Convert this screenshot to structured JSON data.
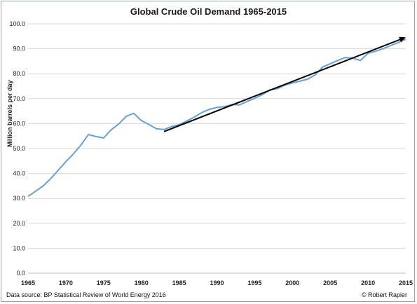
{
  "chart_data": {
    "type": "line",
    "title": "Global Crude Oil Demand 1965-2015",
    "ylabel": "Million barrels per day",
    "xlabel": "",
    "xlim": [
      1965,
      2015
    ],
    "ylim": [
      0,
      100
    ],
    "grid": true,
    "x_ticks": [
      "1965",
      "1970",
      "1975",
      "1980",
      "1985",
      "1990",
      "1995",
      "2000",
      "2005",
      "2010",
      "2015"
    ],
    "y_ticks": [
      "0.0",
      "10.0",
      "20.0",
      "30.0",
      "40.0",
      "50.0",
      "60.0",
      "70.0",
      "80.0",
      "90.0",
      "100.0"
    ],
    "series": [
      {
        "color": "#6a9fd0",
        "x": [
          1965,
          1966,
          1967,
          1968,
          1969,
          1970,
          1971,
          1972,
          1973,
          1974,
          1975,
          1976,
          1977,
          1978,
          1979,
          1980,
          1981,
          1982,
          1983,
          1984,
          1985,
          1986,
          1987,
          1988,
          1989,
          1990,
          1991,
          1992,
          1993,
          1994,
          1995,
          1996,
          1997,
          1998,
          1999,
          2000,
          2001,
          2002,
          2003,
          2004,
          2005,
          2006,
          2007,
          2008,
          2009,
          2010,
          2011,
          2012,
          2013,
          2014,
          2015
        ],
        "y": [
          30.8,
          32.9,
          35.0,
          37.9,
          41.3,
          44.7,
          47.8,
          51.4,
          55.6,
          54.8,
          54.2,
          57.5,
          59.8,
          62.9,
          64.1,
          61.2,
          59.6,
          57.9,
          57.6,
          58.8,
          59.5,
          61.0,
          62.6,
          64.4,
          65.7,
          66.5,
          66.8,
          67.6,
          67.5,
          68.9,
          70.1,
          71.6,
          73.5,
          74.0,
          75.4,
          76.3,
          77.0,
          77.8,
          79.5,
          82.7,
          84.0,
          85.3,
          86.5,
          86.2,
          85.3,
          88.2,
          89.0,
          90.0,
          91.3,
          92.5,
          93.8
        ]
      }
    ],
    "trendline": {
      "color": "#000000",
      "x": [
        1983,
        2015
      ],
      "y": [
        56.8,
        94.6
      ]
    }
  },
  "footer": {
    "source": "Data source: BP Statistical Review of World Energy 2016",
    "credit": "© Robert Rapier"
  }
}
